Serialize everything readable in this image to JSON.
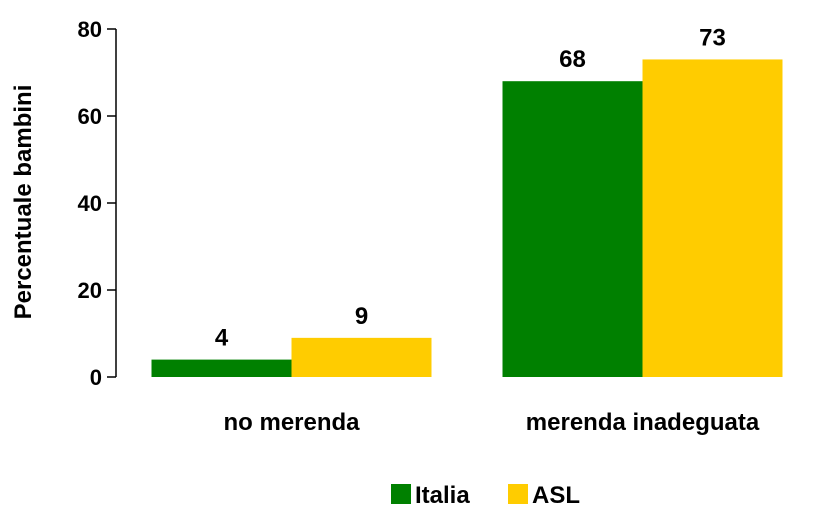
{
  "chart_data": {
    "type": "bar",
    "title": "",
    "xlabel": "",
    "ylabel": "Percentuale bambini",
    "ylim": [
      0,
      80
    ],
    "yticks": [
      0,
      20,
      40,
      60,
      80
    ],
    "categories": [
      "no merenda",
      "merenda inadeguata"
    ],
    "series": [
      {
        "name": "Italia",
        "values": [
          4,
          68
        ],
        "color": "#008000"
      },
      {
        "name": "ASL",
        "values": [
          9,
          73
        ],
        "color": "#FFCC00"
      }
    ],
    "grid": false,
    "legend_position": "bottom"
  }
}
